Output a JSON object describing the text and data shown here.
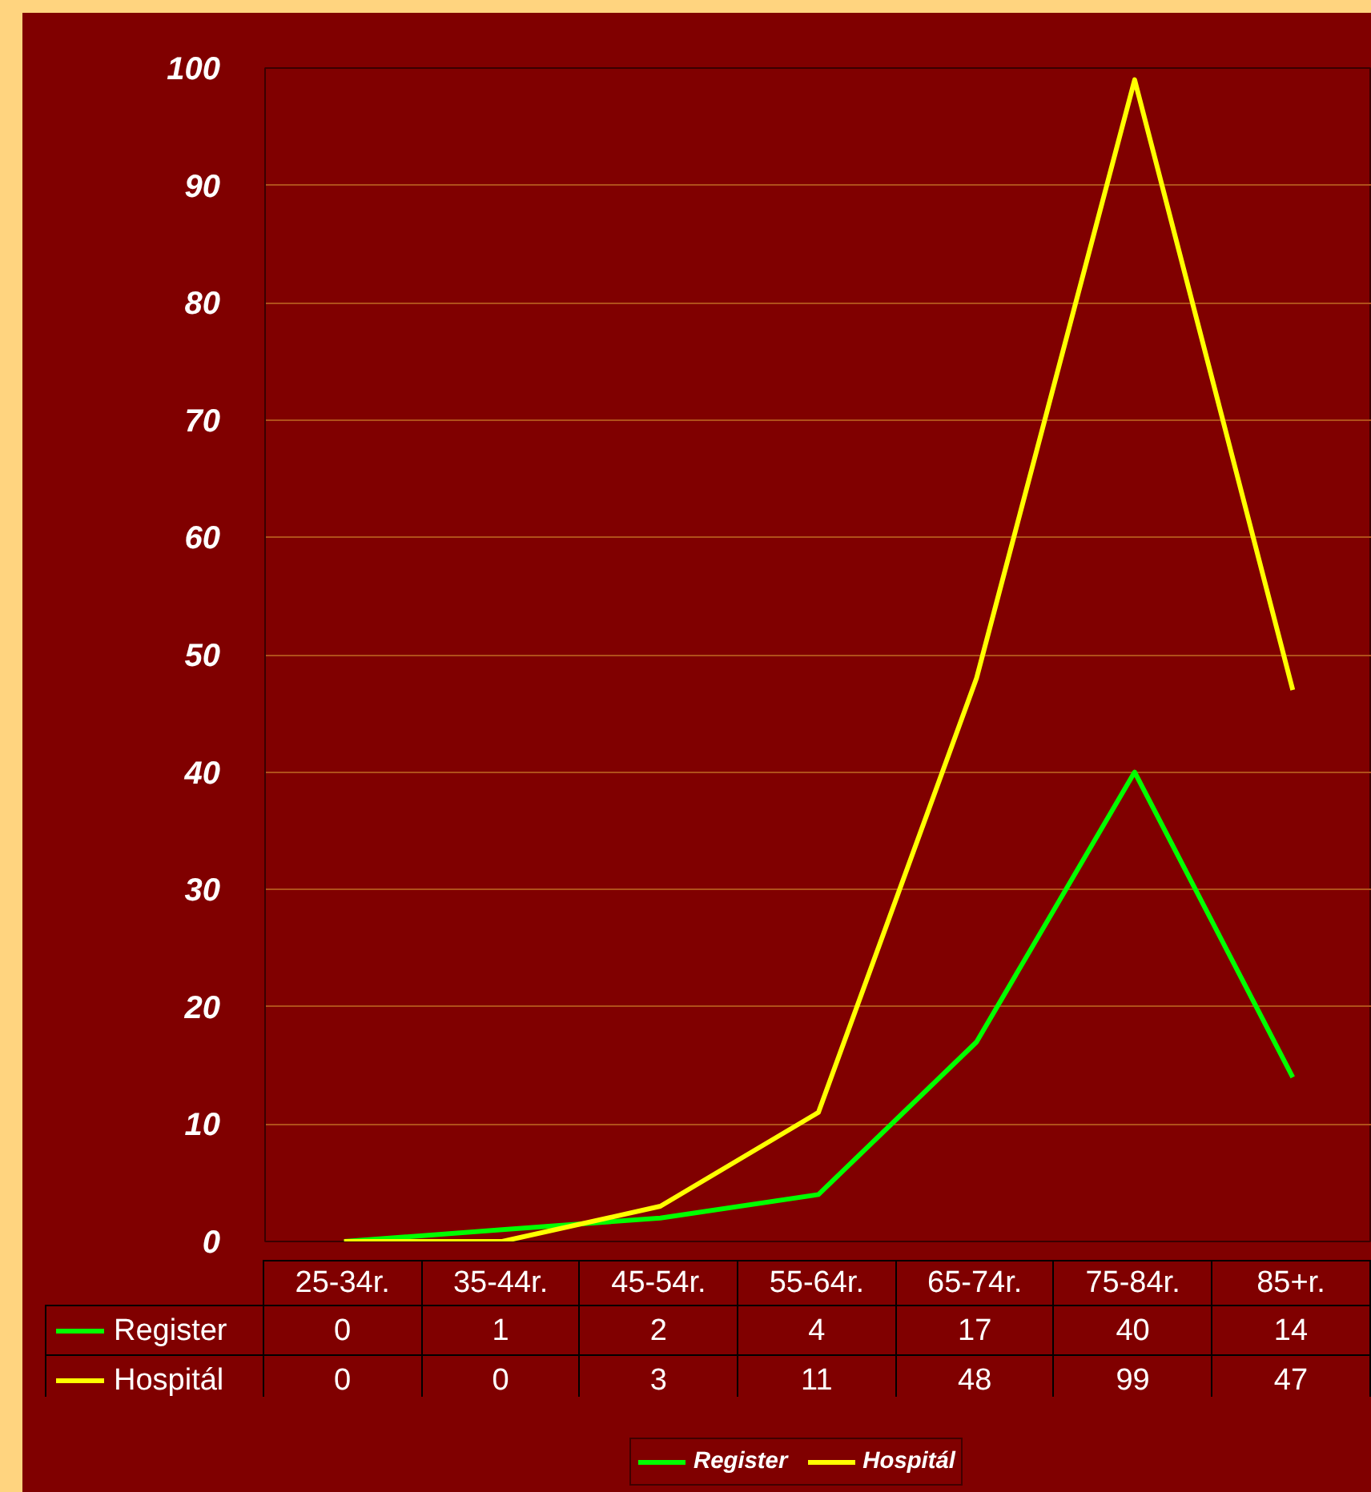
{
  "chart_data": {
    "type": "line",
    "categories": [
      "25-34r.",
      "35-44r.",
      "45-54r.",
      "55-64r.",
      "65-74r.",
      "75-84r.",
      "85+r."
    ],
    "series": [
      {
        "name": "Register",
        "color": "#00ff00",
        "values": [
          0,
          1,
          2,
          4,
          17,
          40,
          14
        ]
      },
      {
        "name": "Hospitál",
        "color": "#ffff00",
        "values": [
          0,
          0,
          3,
          11,
          48,
          99,
          47
        ]
      }
    ],
    "ylim": [
      0,
      100
    ],
    "yticks": [
      0,
      10,
      20,
      30,
      40,
      50,
      60,
      70,
      80,
      90,
      100
    ],
    "grid": "y",
    "legend": "bottom",
    "data_labels": true
  }
}
